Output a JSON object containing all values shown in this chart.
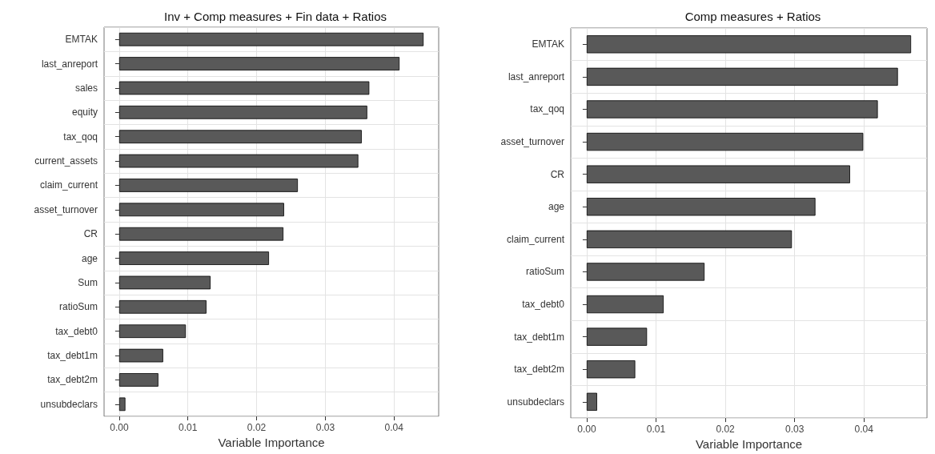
{
  "chart_data": [
    {
      "type": "bar",
      "orientation": "horizontal",
      "title": "Inv + Comp measures + Fin data + Ratios",
      "xlabel": "Variable Importance",
      "categories": [
        "EMTAK",
        "last_anreport",
        "sales",
        "equity",
        "tax_qoq",
        "current_assets",
        "claim_current",
        "asset_turnover",
        "CR",
        "age",
        "Sum",
        "ratioSum",
        "tax_debt0",
        "tax_debt1m",
        "tax_debt2m",
        "unsubdeclars"
      ],
      "values": [
        0.0443,
        0.0408,
        0.0364,
        0.0361,
        0.0353,
        0.0348,
        0.026,
        0.024,
        0.0239,
        0.0218,
        0.0133,
        0.0127,
        0.0097,
        0.0064,
        0.0057,
        0.0009
      ],
      "color": "#595959",
      "xlim": [
        -0.0022,
        0.0465
      ],
      "xticks": [
        {
          "value": 0,
          "label": "0.00"
        },
        {
          "value": 0.01,
          "label": "0.01"
        },
        {
          "value": 0.02,
          "label": "0.02"
        },
        {
          "value": 0.03,
          "label": "0.03"
        },
        {
          "value": 0.04,
          "label": "0.04"
        }
      ],
      "grid": true
    },
    {
      "type": "bar",
      "orientation": "horizontal",
      "title": "Comp measures + Ratios",
      "xlabel": "Variable Importance",
      "categories": [
        "EMTAK",
        "last_anreport",
        "tax_qoq",
        "asset_turnover",
        "CR",
        "age",
        "claim_current",
        "ratioSum",
        "tax_debt0",
        "tax_debt1m",
        "tax_debt2m",
        "unsubdeclars"
      ],
      "values": [
        0.0468,
        0.0449,
        0.042,
        0.0399,
        0.038,
        0.033,
        0.0296,
        0.017,
        0.0111,
        0.0087,
        0.007,
        0.0015
      ],
      "color": "#595959",
      "xlim": [
        -0.0023,
        0.0491
      ],
      "xticks": [
        {
          "value": 0,
          "label": "0.00"
        },
        {
          "value": 0.01,
          "label": "0.01"
        },
        {
          "value": 0.02,
          "label": "0.02"
        },
        {
          "value": 0.03,
          "label": "0.03"
        },
        {
          "value": 0.04,
          "label": "0.04"
        }
      ],
      "grid": true
    }
  ]
}
